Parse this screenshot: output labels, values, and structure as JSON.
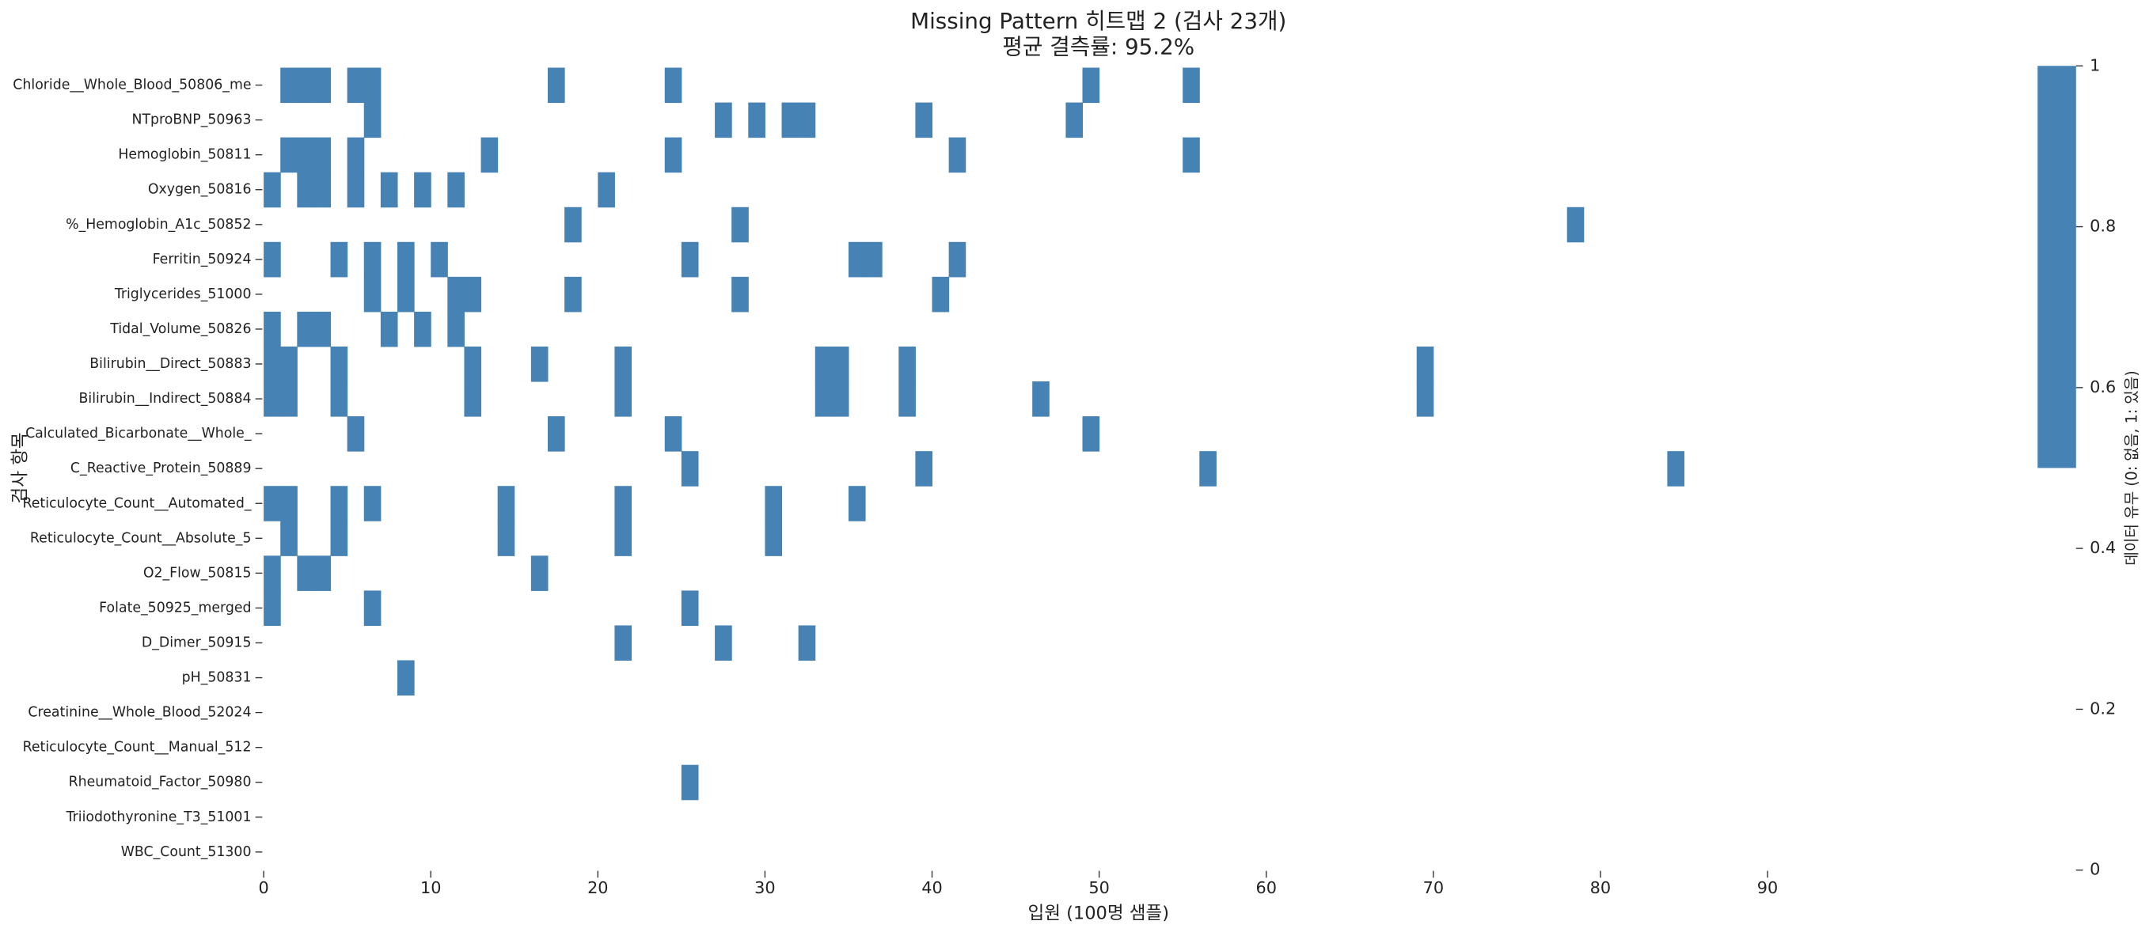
{
  "chart_data": {
    "type": "heatmap",
    "title": "Missing Pattern 히트맵 2 (검사 23개)",
    "subtitle": "평균 결측률: 95.2%",
    "x_label": "입원 (100명 샘플)",
    "y_label": "검사 항목",
    "colorbar_label": "데이터 유무 (0: 없음, 1: 있음)",
    "colors": [
      "#ffffff",
      "#4682b4"
    ],
    "xlim": [
      0,
      100
    ],
    "xticks": [
      0,
      10,
      20,
      30,
      40,
      50,
      60,
      70,
      80,
      90
    ],
    "clim": [
      0,
      1
    ],
    "cticks": [
      0.0,
      0.2,
      0.4,
      0.6,
      0.8,
      1.0
    ],
    "rows": [
      {
        "name": "Chloride__Whole_Blood_50806_me",
        "present": [
          1,
          2,
          3,
          5,
          6,
          17,
          24,
          49,
          55
        ]
      },
      {
        "name": "NTproBNP_50963",
        "present": [
          6,
          27,
          29,
          31,
          32,
          39,
          48
        ]
      },
      {
        "name": "Hemoglobin_50811",
        "present": [
          1,
          2,
          3,
          5,
          13,
          24,
          41,
          55
        ]
      },
      {
        "name": "Oxygen_50816",
        "present": [
          0,
          2,
          3,
          5,
          7,
          9,
          11,
          20
        ]
      },
      {
        "name": "%_Hemoglobin_A1c_50852",
        "present": [
          18,
          28,
          78
        ]
      },
      {
        "name": "Ferritin_50924",
        "present": [
          0,
          4,
          6,
          8,
          10,
          25,
          35,
          36,
          41
        ]
      },
      {
        "name": "Triglycerides_51000",
        "present": [
          6,
          8,
          11,
          12,
          18,
          28,
          40
        ]
      },
      {
        "name": "Tidal_Volume_50826",
        "present": [
          0,
          2,
          3,
          7,
          9,
          11
        ]
      },
      {
        "name": "Bilirubin__Direct_50883",
        "present": [
          0,
          1,
          4,
          12,
          16,
          21,
          33,
          34,
          38,
          69
        ]
      },
      {
        "name": "Bilirubin__Indirect_50884",
        "present": [
          0,
          1,
          4,
          12,
          21,
          33,
          34,
          38,
          46,
          69
        ]
      },
      {
        "name": "Calculated_Bicarbonate__Whole_",
        "present": [
          5,
          17,
          24,
          49
        ]
      },
      {
        "name": "C_Reactive_Protein_50889",
        "present": [
          25,
          39,
          56,
          84
        ]
      },
      {
        "name": "Reticulocyte_Count__Automated_",
        "present": [
          0,
          1,
          4,
          6,
          14,
          21,
          30,
          35
        ]
      },
      {
        "name": "Reticulocyte_Count__Absolute_5",
        "present": [
          1,
          4,
          14,
          21,
          30
        ]
      },
      {
        "name": "O2_Flow_50815",
        "present": [
          0,
          2,
          3,
          16
        ]
      },
      {
        "name": "Folate_50925_merged",
        "present": [
          0,
          6,
          25
        ]
      },
      {
        "name": "D_Dimer_50915",
        "present": [
          21,
          27,
          32
        ]
      },
      {
        "name": "pH_50831",
        "present": [
          8
        ]
      },
      {
        "name": "Creatinine__Whole_Blood_52024",
        "present": []
      },
      {
        "name": "Reticulocyte_Count__Manual_512",
        "present": []
      },
      {
        "name": "Rheumatoid_Factor_50980",
        "present": [
          25
        ]
      },
      {
        "name": "Triiodothyronine_T3_51001",
        "present": []
      },
      {
        "name": "WBC_Count_51300",
        "present": []
      }
    ]
  }
}
